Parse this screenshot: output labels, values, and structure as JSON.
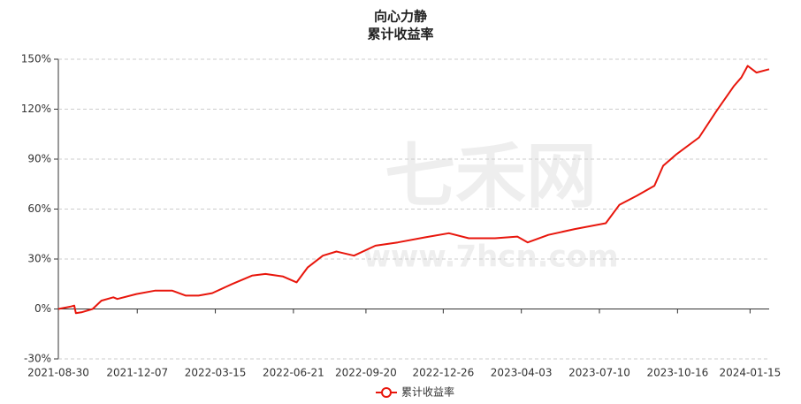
{
  "chart_data": {
    "type": "line",
    "title": "向心力静",
    "subtitle": "累计收益率",
    "watermark": [
      "七禾网",
      "www.7hcn.com"
    ],
    "x": [
      "2021-08-30",
      "2021-09-15",
      "2021-09-19",
      "2021-09-21",
      "2021-09-28",
      "2021-10-12",
      "2021-10-23",
      "2021-11-07",
      "2021-11-12",
      "2021-12-06",
      "2021-12-29",
      "2022-01-20",
      "2022-02-06",
      "2022-02-22",
      "2022-03-11",
      "2022-04-05",
      "2022-04-30",
      "2022-05-17",
      "2022-06-08",
      "2022-06-25",
      "2022-07-09",
      "2022-07-28",
      "2022-08-14",
      "2022-09-05",
      "2022-10-02",
      "2022-10-30",
      "2022-12-03",
      "2023-01-02",
      "2023-01-27",
      "2023-03-01",
      "2023-03-29",
      "2023-04-11",
      "2023-05-07",
      "2023-06-09",
      "2023-07-18",
      "2023-08-04",
      "2023-08-26",
      "2023-09-17",
      "2023-09-28",
      "2023-10-15",
      "2023-11-12",
      "2023-12-04",
      "2023-12-26",
      "2024-01-04",
      "2024-01-12",
      "2024-01-23",
      "2024-02-08"
    ],
    "series": [
      {
        "name": "累计收益率",
        "color": "#e8160c",
        "values": [
          0,
          1.5,
          2,
          -2.5,
          -2,
          0,
          5,
          7,
          6,
          9,
          11,
          11,
          8,
          8,
          9.5,
          15,
          20,
          21,
          19.5,
          16,
          25,
          32,
          34.5,
          32,
          38,
          40,
          43,
          45.5,
          42.5,
          42.5,
          43.5,
          40,
          44.5,
          48,
          51.5,
          62.5,
          68,
          74,
          86,
          93,
          103,
          119,
          134,
          139,
          146,
          142,
          144
        ]
      }
    ],
    "xlim": [
      "2021-08-30",
      "2024-02-08"
    ],
    "xticks": [
      "2021-08-30",
      "2021-12-07",
      "2022-03-15",
      "2022-06-21",
      "2022-09-20",
      "2022-12-26",
      "2023-04-03",
      "2023-07-10",
      "2023-10-16",
      "2024-01-15"
    ],
    "ylim": [
      -30,
      150
    ],
    "yticks": [
      {
        "value": -30,
        "label": "-30%"
      },
      {
        "value": 0,
        "label": "0%"
      },
      {
        "value": 30,
        "label": "30%"
      },
      {
        "value": 60,
        "label": "60%"
      },
      {
        "value": 90,
        "label": "90%"
      },
      {
        "value": 120,
        "label": "120%"
      },
      {
        "value": 150,
        "label": "150%"
      }
    ],
    "grid": true,
    "legend": "bottom"
  }
}
